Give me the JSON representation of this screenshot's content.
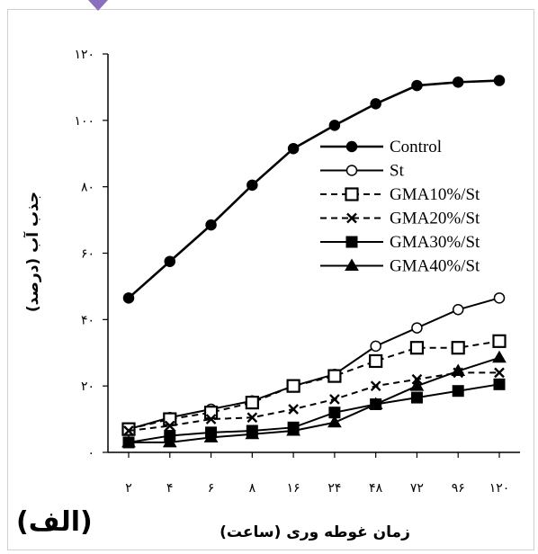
{
  "chart_data": {
    "type": "line",
    "panel_label": "(الف)",
    "xlabel": "زمان غوطه وری (ساعت)",
    "ylabel": "جذب آب (درصد)",
    "ylim": [
      0,
      120
    ],
    "yticks": [
      "۰",
      "۲۰",
      "۴۰",
      "۶۰",
      "۸۰",
      "۱۰۰",
      "۱۲۰"
    ],
    "categories": [
      "۲",
      "۴",
      "۶",
      "۸",
      "۱۶",
      "۲۴",
      "۴۸",
      "۷۲",
      "۹۶",
      "۱۲۰"
    ],
    "legend_position": "right",
    "series": [
      {
        "name": "Control",
        "marker": "circle-filled",
        "dash": "solid",
        "values": [
          46.5,
          57.5,
          68.5,
          80.5,
          91.5,
          98.5,
          105,
          110.5,
          111.5,
          112
        ]
      },
      {
        "name": "St",
        "marker": "circle-open",
        "dash": "solid",
        "values": [
          7,
          10.5,
          13,
          15.5,
          20,
          23.5,
          32,
          37.5,
          43,
          46.5
        ]
      },
      {
        "name": "GMA10%/St",
        "marker": "square-open",
        "dash": "dashed",
        "values": [
          7,
          10,
          12,
          15,
          20,
          23,
          27.5,
          31.5,
          31.5,
          33.5
        ]
      },
      {
        "name": "GMA20%/St",
        "marker": "x",
        "dash": "dashed",
        "values": [
          6.5,
          8,
          10,
          10.5,
          13,
          16,
          20,
          22,
          24,
          24
        ]
      },
      {
        "name": "GMA30%/St",
        "marker": "square-filled",
        "dash": "solid",
        "values": [
          3,
          5,
          6,
          6.5,
          7.5,
          12,
          14.5,
          16.5,
          18.5,
          20.5
        ]
      },
      {
        "name": "GMA40%/St",
        "marker": "triangle-filled",
        "dash": "solid",
        "values": [
          3,
          3,
          4.5,
          5.5,
          6.5,
          9,
          14.5,
          20,
          24.5,
          28.5
        ]
      }
    ]
  }
}
